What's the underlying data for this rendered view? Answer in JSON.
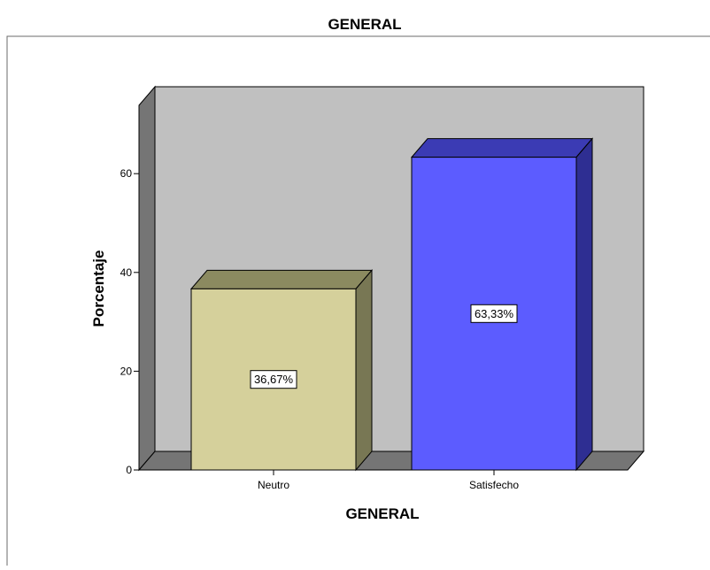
{
  "chart_data": {
    "type": "bar",
    "title": "GENERAL",
    "xlabel": "GENERAL",
    "ylabel": "Porcentaje",
    "categories": [
      "Neutro",
      "Satisfecho"
    ],
    "values": [
      36.67,
      63.33
    ],
    "value_labels": [
      "36,67%",
      "63,33%"
    ],
    "ylim": [
      0,
      75
    ],
    "yticks": [
      0,
      20,
      40,
      60
    ],
    "ytick_labels": [
      "0",
      "20",
      "40",
      "60"
    ],
    "grid": false,
    "legend": "none",
    "colors": {
      "bars": [
        "#d5d09b",
        "#5c5cff"
      ],
      "bar_tops": [
        "#8b8a60",
        "#3b3bb4"
      ],
      "bar_sides": [
        "#787754",
        "#2e2e92"
      ],
      "back_wall": "#c0c0c0",
      "side_wall": "#757575",
      "floor": "#757575"
    }
  }
}
